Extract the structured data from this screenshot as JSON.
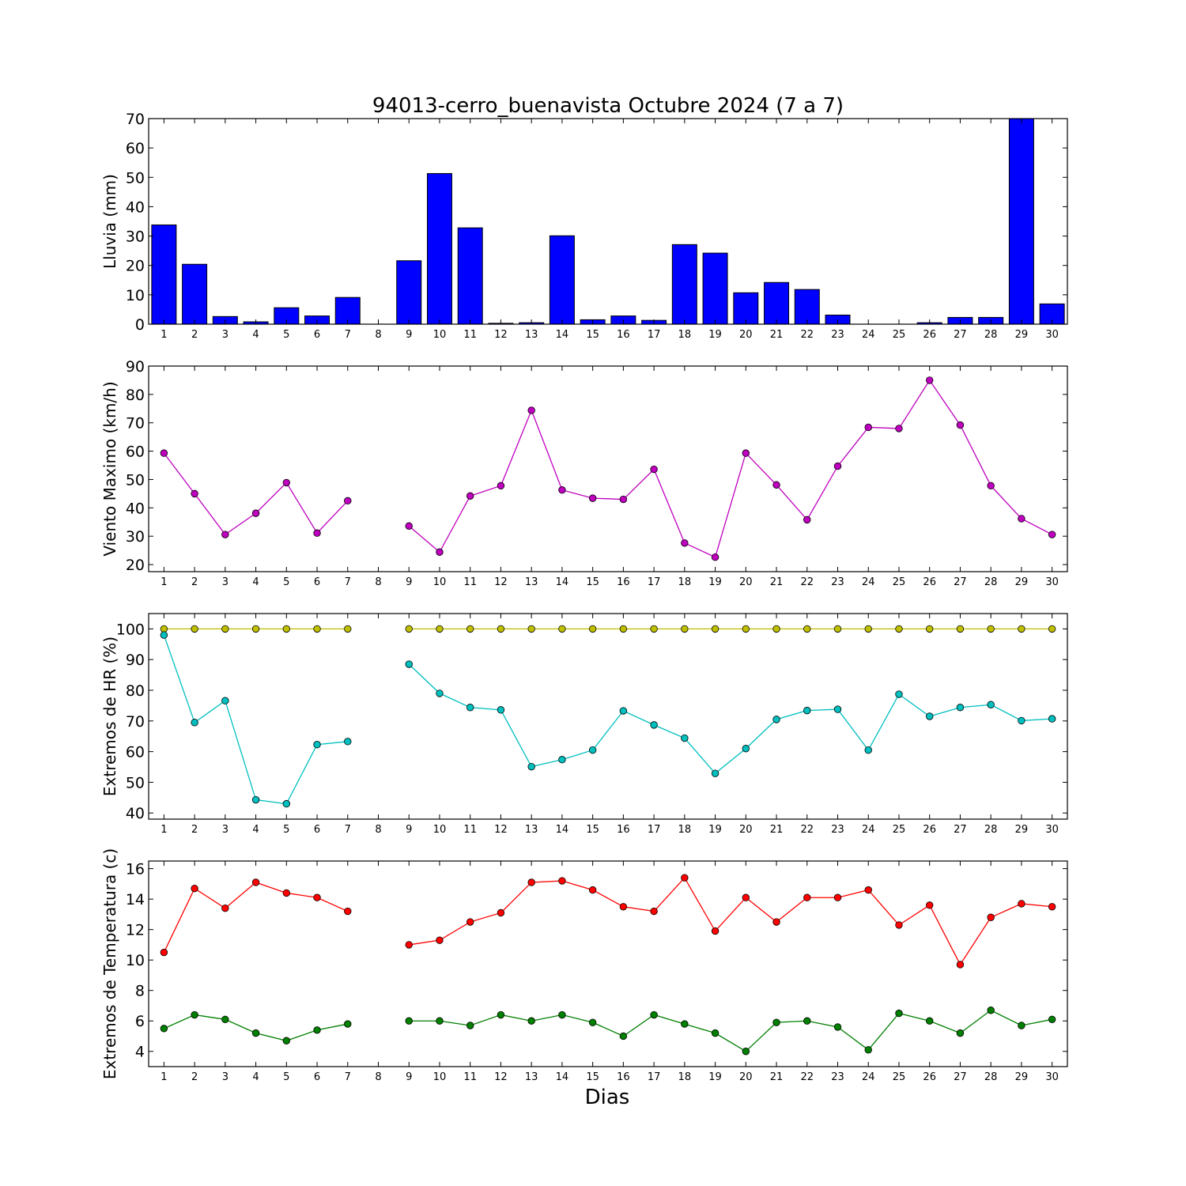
{
  "chart_data": [
    {
      "type": "bar",
      "title": "94013-cerro_buenavista Octubre 2024  (7 a 7)",
      "ylabel": "Lluvia (mm)",
      "xlabel": "",
      "x": [
        1,
        2,
        3,
        4,
        5,
        6,
        7,
        8,
        9,
        10,
        11,
        12,
        13,
        14,
        15,
        16,
        17,
        18,
        19,
        20,
        21,
        22,
        23,
        24,
        25,
        26,
        27,
        28,
        29,
        30
      ],
      "ylim": [
        0,
        70
      ],
      "yticks": [
        0,
        10,
        20,
        30,
        40,
        50,
        60,
        70
      ],
      "grid": false,
      "series": [
        {
          "color": "#0000ff",
          "values": [
            33.8,
            20.4,
            2.6,
            0.8,
            5.6,
            2.8,
            9.1,
            null,
            21.6,
            51.3,
            32.8,
            0.3,
            0.5,
            30.1,
            1.5,
            2.8,
            1.3,
            27.1,
            24.2,
            10.7,
            14.2,
            11.8,
            3.1,
            0.0,
            0.0,
            0.5,
            2.3,
            2.3,
            70.0,
            6.9
          ]
        }
      ]
    },
    {
      "type": "line",
      "title": "",
      "ylabel": "Viento Maximo (km/h)",
      "xlabel": "",
      "x": [
        1,
        2,
        3,
        4,
        5,
        6,
        7,
        8,
        9,
        10,
        11,
        12,
        13,
        14,
        15,
        16,
        17,
        18,
        19,
        20,
        21,
        22,
        23,
        24,
        25,
        26,
        27,
        28,
        29,
        30
      ],
      "ylim": [
        17.5,
        90
      ],
      "yticks": [
        20,
        30,
        40,
        50,
        60,
        70,
        80,
        90
      ],
      "grid": false,
      "series": [
        {
          "color": "#bf00bf",
          "values": [
            59.3,
            45.0,
            30.6,
            38.1,
            48.9,
            31.1,
            42.5,
            null,
            33.6,
            24.4,
            44.2,
            47.8,
            74.4,
            46.3,
            43.4,
            43.0,
            53.6,
            27.6,
            22.6,
            59.3,
            48.1,
            35.8,
            54.7,
            68.4,
            68.0,
            85.0,
            69.2,
            47.8,
            36.2,
            30.6
          ]
        }
      ]
    },
    {
      "type": "line",
      "title": "",
      "ylabel": "Extremos de HR (%)",
      "xlabel": "",
      "x": [
        1,
        2,
        3,
        4,
        5,
        6,
        7,
        8,
        9,
        10,
        11,
        12,
        13,
        14,
        15,
        16,
        17,
        18,
        19,
        20,
        21,
        22,
        23,
        24,
        25,
        26,
        27,
        28,
        29,
        30
      ],
      "ylim": [
        38,
        105
      ],
      "yticks": [
        40,
        50,
        60,
        70,
        80,
        90,
        100
      ],
      "grid": false,
      "series": [
        {
          "color": "#bfbf00",
          "values": [
            100,
            100,
            100,
            100,
            100,
            100,
            100,
            null,
            100,
            100,
            100,
            100,
            100,
            100,
            100,
            100,
            100,
            100,
            100,
            100,
            100,
            100,
            100,
            100,
            100,
            100,
            100,
            100,
            100,
            100
          ]
        },
        {
          "color": "#00bfbf",
          "values": [
            98,
            69.5,
            76.6,
            44.3,
            43.0,
            62.3,
            63.3,
            null,
            88.5,
            79,
            74.4,
            73.6,
            55.1,
            57.4,
            60.5,
            73.3,
            68.7,
            64.4,
            52.9,
            61.0,
            70.5,
            73.4,
            73.8,
            60.5,
            78.7,
            71.5,
            74.4,
            75.3,
            70.1,
            70.7
          ]
        }
      ]
    },
    {
      "type": "line",
      "title": "",
      "ylabel": "Extremos de Temperatura (c)",
      "xlabel": "Dias",
      "x": [
        1,
        2,
        3,
        4,
        5,
        6,
        7,
        8,
        9,
        10,
        11,
        12,
        13,
        14,
        15,
        16,
        17,
        18,
        19,
        20,
        21,
        22,
        23,
        24,
        25,
        26,
        27,
        28,
        29,
        30
      ],
      "ylim": [
        3,
        16.5
      ],
      "yticks": [
        4,
        6,
        8,
        10,
        12,
        14,
        16
      ],
      "grid": false,
      "series": [
        {
          "color": "#ff0000",
          "values": [
            10.5,
            14.7,
            13.4,
            15.1,
            14.4,
            14.1,
            13.2,
            null,
            11.0,
            11.3,
            12.5,
            13.1,
            15.1,
            15.2,
            14.6,
            13.5,
            13.2,
            15.4,
            11.9,
            14.1,
            12.5,
            14.1,
            14.1,
            14.6,
            12.3,
            13.6,
            9.7,
            12.8,
            13.7,
            13.5
          ]
        },
        {
          "color": "#007f00",
          "values": [
            5.5,
            6.4,
            6.1,
            5.2,
            4.7,
            5.4,
            5.8,
            null,
            6.0,
            6.0,
            5.7,
            6.4,
            6.0,
            6.4,
            5.9,
            5.0,
            6.4,
            5.8,
            5.2,
            4.0,
            5.9,
            6.0,
            5.6,
            4.1,
            6.5,
            6.0,
            5.2,
            6.7,
            5.7,
            6.1
          ]
        }
      ]
    }
  ]
}
